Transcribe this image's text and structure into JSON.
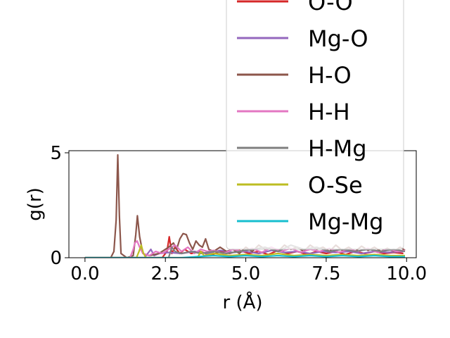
{
  "chart_data": {
    "type": "line",
    "title": "",
    "xlabel": "r (Å)",
    "ylabel": "g(r)",
    "xlim": [
      -0.5,
      10.3
    ],
    "ylim": [
      0,
      5.1
    ],
    "xticks": [
      0.0,
      2.5,
      5.0,
      7.5,
      10.0
    ],
    "xtick_labels": [
      "0.0",
      "2.5",
      "5.0",
      "7.5",
      "10.0"
    ],
    "yticks": [
      0,
      5
    ],
    "ytick_labels": [
      "0",
      "5"
    ],
    "grid": false,
    "legend_position": "upper-right, extending above the axes",
    "series": [
      {
        "name": "O-O",
        "color": "#d62728",
        "points": [
          [
            0,
            0
          ],
          [
            2.4,
            0
          ],
          [
            2.55,
            0.3
          ],
          [
            2.62,
            1.0
          ],
          [
            2.7,
            0.2
          ],
          [
            2.8,
            0.5
          ],
          [
            2.95,
            0.2
          ],
          [
            3.1,
            0.4
          ],
          [
            3.3,
            0.2
          ],
          [
            3.6,
            0.3
          ],
          [
            3.9,
            0.1
          ],
          [
            4.2,
            0.3
          ],
          [
            4.5,
            0.2
          ],
          [
            4.8,
            0.35
          ],
          [
            5.1,
            0.2
          ],
          [
            5.4,
            0.3
          ],
          [
            5.7,
            0.15
          ],
          [
            6.0,
            0.35
          ],
          [
            6.3,
            0.2
          ],
          [
            6.6,
            0.3
          ],
          [
            6.9,
            0.15
          ],
          [
            7.2,
            0.3
          ],
          [
            7.5,
            0.2
          ],
          [
            7.8,
            0.3
          ],
          [
            8.1,
            0.15
          ],
          [
            8.4,
            0.3
          ],
          [
            8.7,
            0.2
          ],
          [
            9.0,
            0.3
          ],
          [
            9.3,
            0.2
          ],
          [
            9.6,
            0.25
          ],
          [
            9.9,
            0.2
          ]
        ]
      },
      {
        "name": "Mg-O",
        "color": "#9467bd",
        "points": [
          [
            0,
            0
          ],
          [
            1.85,
            0
          ],
          [
            1.95,
            0.2
          ],
          [
            2.05,
            0.4
          ],
          [
            2.15,
            0.1
          ],
          [
            2.3,
            0.2
          ],
          [
            2.6,
            0.25
          ],
          [
            3.0,
            0.2
          ],
          [
            3.4,
            0.3
          ],
          [
            3.8,
            0.2
          ],
          [
            4.2,
            0.35
          ],
          [
            4.6,
            0.25
          ],
          [
            5.0,
            0.3
          ],
          [
            5.4,
            0.2
          ],
          [
            5.8,
            0.35
          ],
          [
            6.2,
            0.25
          ],
          [
            6.6,
            0.3
          ],
          [
            7.0,
            0.2
          ],
          [
            7.4,
            0.3
          ],
          [
            7.8,
            0.25
          ],
          [
            8.2,
            0.3
          ],
          [
            8.6,
            0.2
          ],
          [
            9.0,
            0.3
          ],
          [
            9.4,
            0.25
          ],
          [
            9.9,
            0.3
          ]
        ]
      },
      {
        "name": "H-O",
        "color": "#8c564b",
        "points": [
          [
            0,
            0
          ],
          [
            0.8,
            0
          ],
          [
            0.9,
            0.3
          ],
          [
            0.97,
            1.8
          ],
          [
            1.02,
            4.9
          ],
          [
            1.07,
            2.0
          ],
          [
            1.12,
            0.2
          ],
          [
            1.3,
            0.0
          ],
          [
            1.5,
            0.1
          ],
          [
            1.58,
            1.1
          ],
          [
            1.63,
            2.0
          ],
          [
            1.7,
            1.0
          ],
          [
            1.8,
            0.2
          ],
          [
            2.0,
            0.1
          ],
          [
            2.3,
            0.2
          ],
          [
            2.6,
            0.5
          ],
          [
            2.75,
            0.7
          ],
          [
            2.85,
            0.4
          ],
          [
            2.95,
            0.9
          ],
          [
            3.05,
            1.15
          ],
          [
            3.15,
            1.1
          ],
          [
            3.25,
            0.7
          ],
          [
            3.35,
            0.4
          ],
          [
            3.45,
            0.8
          ],
          [
            3.55,
            0.6
          ],
          [
            3.65,
            0.5
          ],
          [
            3.75,
            0.9
          ],
          [
            3.85,
            0.4
          ],
          [
            4.0,
            0.3
          ],
          [
            4.2,
            0.5
          ],
          [
            4.4,
            0.3
          ],
          [
            4.6,
            0.4
          ],
          [
            4.8,
            0.2
          ],
          [
            5.0,
            0.5
          ],
          [
            5.2,
            0.3
          ],
          [
            5.4,
            0.6
          ],
          [
            5.6,
            0.4
          ],
          [
            5.8,
            0.5
          ],
          [
            6.0,
            0.3
          ],
          [
            6.2,
            0.6
          ],
          [
            6.4,
            0.4
          ],
          [
            6.6,
            0.5
          ],
          [
            6.8,
            0.3
          ],
          [
            7.0,
            0.6
          ],
          [
            7.2,
            0.4
          ],
          [
            7.4,
            0.5
          ],
          [
            7.6,
            0.3
          ],
          [
            7.8,
            0.6
          ],
          [
            8.0,
            0.35
          ],
          [
            8.2,
            0.5
          ],
          [
            8.4,
            0.3
          ],
          [
            8.6,
            0.55
          ],
          [
            8.8,
            0.35
          ],
          [
            9.0,
            0.5
          ],
          [
            9.2,
            0.3
          ],
          [
            9.4,
            0.45
          ],
          [
            9.6,
            0.3
          ],
          [
            9.8,
            0.5
          ],
          [
            9.95,
            0.35
          ]
        ]
      },
      {
        "name": "H-H",
        "color": "#e377c2",
        "points": [
          [
            0,
            0
          ],
          [
            1.4,
            0
          ],
          [
            1.5,
            0.4
          ],
          [
            1.55,
            0.7
          ],
          [
            1.62,
            0.8
          ],
          [
            1.7,
            0.5
          ],
          [
            1.8,
            0.2
          ],
          [
            2.0,
            0.1
          ],
          [
            2.2,
            0.3
          ],
          [
            2.4,
            0.2
          ],
          [
            2.6,
            0.4
          ],
          [
            2.8,
            0.6
          ],
          [
            3.0,
            0.3
          ],
          [
            3.2,
            0.5
          ],
          [
            3.4,
            0.2
          ],
          [
            3.6,
            0.4
          ],
          [
            3.8,
            0.3
          ],
          [
            4.0,
            0.35
          ],
          [
            4.3,
            0.2
          ],
          [
            4.6,
            0.4
          ],
          [
            4.9,
            0.3
          ],
          [
            5.2,
            0.45
          ],
          [
            5.5,
            0.25
          ],
          [
            5.8,
            0.5
          ],
          [
            6.1,
            0.3
          ],
          [
            6.4,
            0.45
          ],
          [
            6.7,
            0.25
          ],
          [
            7.0,
            0.4
          ],
          [
            7.3,
            0.3
          ],
          [
            7.6,
            0.45
          ],
          [
            7.9,
            0.25
          ],
          [
            8.2,
            0.4
          ],
          [
            8.5,
            0.3
          ],
          [
            8.8,
            0.45
          ],
          [
            9.1,
            0.25
          ],
          [
            9.4,
            0.4
          ],
          [
            9.7,
            0.3
          ],
          [
            9.95,
            0.35
          ]
        ]
      },
      {
        "name": "H-Mg",
        "color": "#7f7f7f",
        "points": [
          [
            0,
            0
          ],
          [
            2.6,
            0
          ],
          [
            2.7,
            0.5
          ],
          [
            2.8,
            0.3
          ],
          [
            3.0,
            0.2
          ],
          [
            3.3,
            0.3
          ],
          [
            3.6,
            0.2
          ],
          [
            4.0,
            0.3
          ],
          [
            4.4,
            0.2
          ],
          [
            4.8,
            0.3
          ],
          [
            5.2,
            0.4
          ],
          [
            5.6,
            0.5
          ],
          [
            6.0,
            0.3
          ],
          [
            6.4,
            0.6
          ],
          [
            6.8,
            0.4
          ],
          [
            7.2,
            0.5
          ],
          [
            7.6,
            0.3
          ],
          [
            8.0,
            0.4
          ],
          [
            8.4,
            0.3
          ],
          [
            8.8,
            0.4
          ],
          [
            9.2,
            0.3
          ],
          [
            9.6,
            0.4
          ],
          [
            9.95,
            0.3
          ]
        ]
      },
      {
        "name": "O-Se",
        "color": "#bcbd22",
        "points": [
          [
            0,
            0
          ],
          [
            1.6,
            0
          ],
          [
            1.68,
            0.3
          ],
          [
            1.75,
            0.6
          ],
          [
            1.82,
            0.2
          ],
          [
            1.9,
            0
          ],
          [
            3.5,
            0
          ],
          [
            3.6,
            0.3
          ],
          [
            3.7,
            0.1
          ],
          [
            4.0,
            0.2
          ],
          [
            4.5,
            0.1
          ],
          [
            5.0,
            0.15
          ],
          [
            5.5,
            0.1
          ],
          [
            6.0,
            0.2
          ],
          [
            6.5,
            0.1
          ],
          [
            7.0,
            0.15
          ],
          [
            7.5,
            0.1
          ],
          [
            8.0,
            0.15
          ],
          [
            8.5,
            0.1
          ],
          [
            9.0,
            0.15
          ],
          [
            9.5,
            0.1
          ],
          [
            9.95,
            0.1
          ]
        ]
      },
      {
        "name": "Mg-Mg",
        "color": "#17becf",
        "points": [
          [
            0,
            0
          ],
          [
            3.0,
            0
          ],
          [
            3.5,
            0.05
          ],
          [
            4.0,
            0.1
          ],
          [
            4.5,
            0.05
          ],
          [
            5.0,
            0.1
          ],
          [
            5.5,
            0.05
          ],
          [
            6.0,
            0.1
          ],
          [
            6.5,
            0.05
          ],
          [
            7.0,
            0.1
          ],
          [
            7.5,
            0.05
          ],
          [
            8.0,
            0.1
          ],
          [
            8.5,
            0.05
          ],
          [
            9.0,
            0.1
          ],
          [
            9.5,
            0.05
          ],
          [
            9.95,
            0.05
          ]
        ]
      }
    ]
  }
}
